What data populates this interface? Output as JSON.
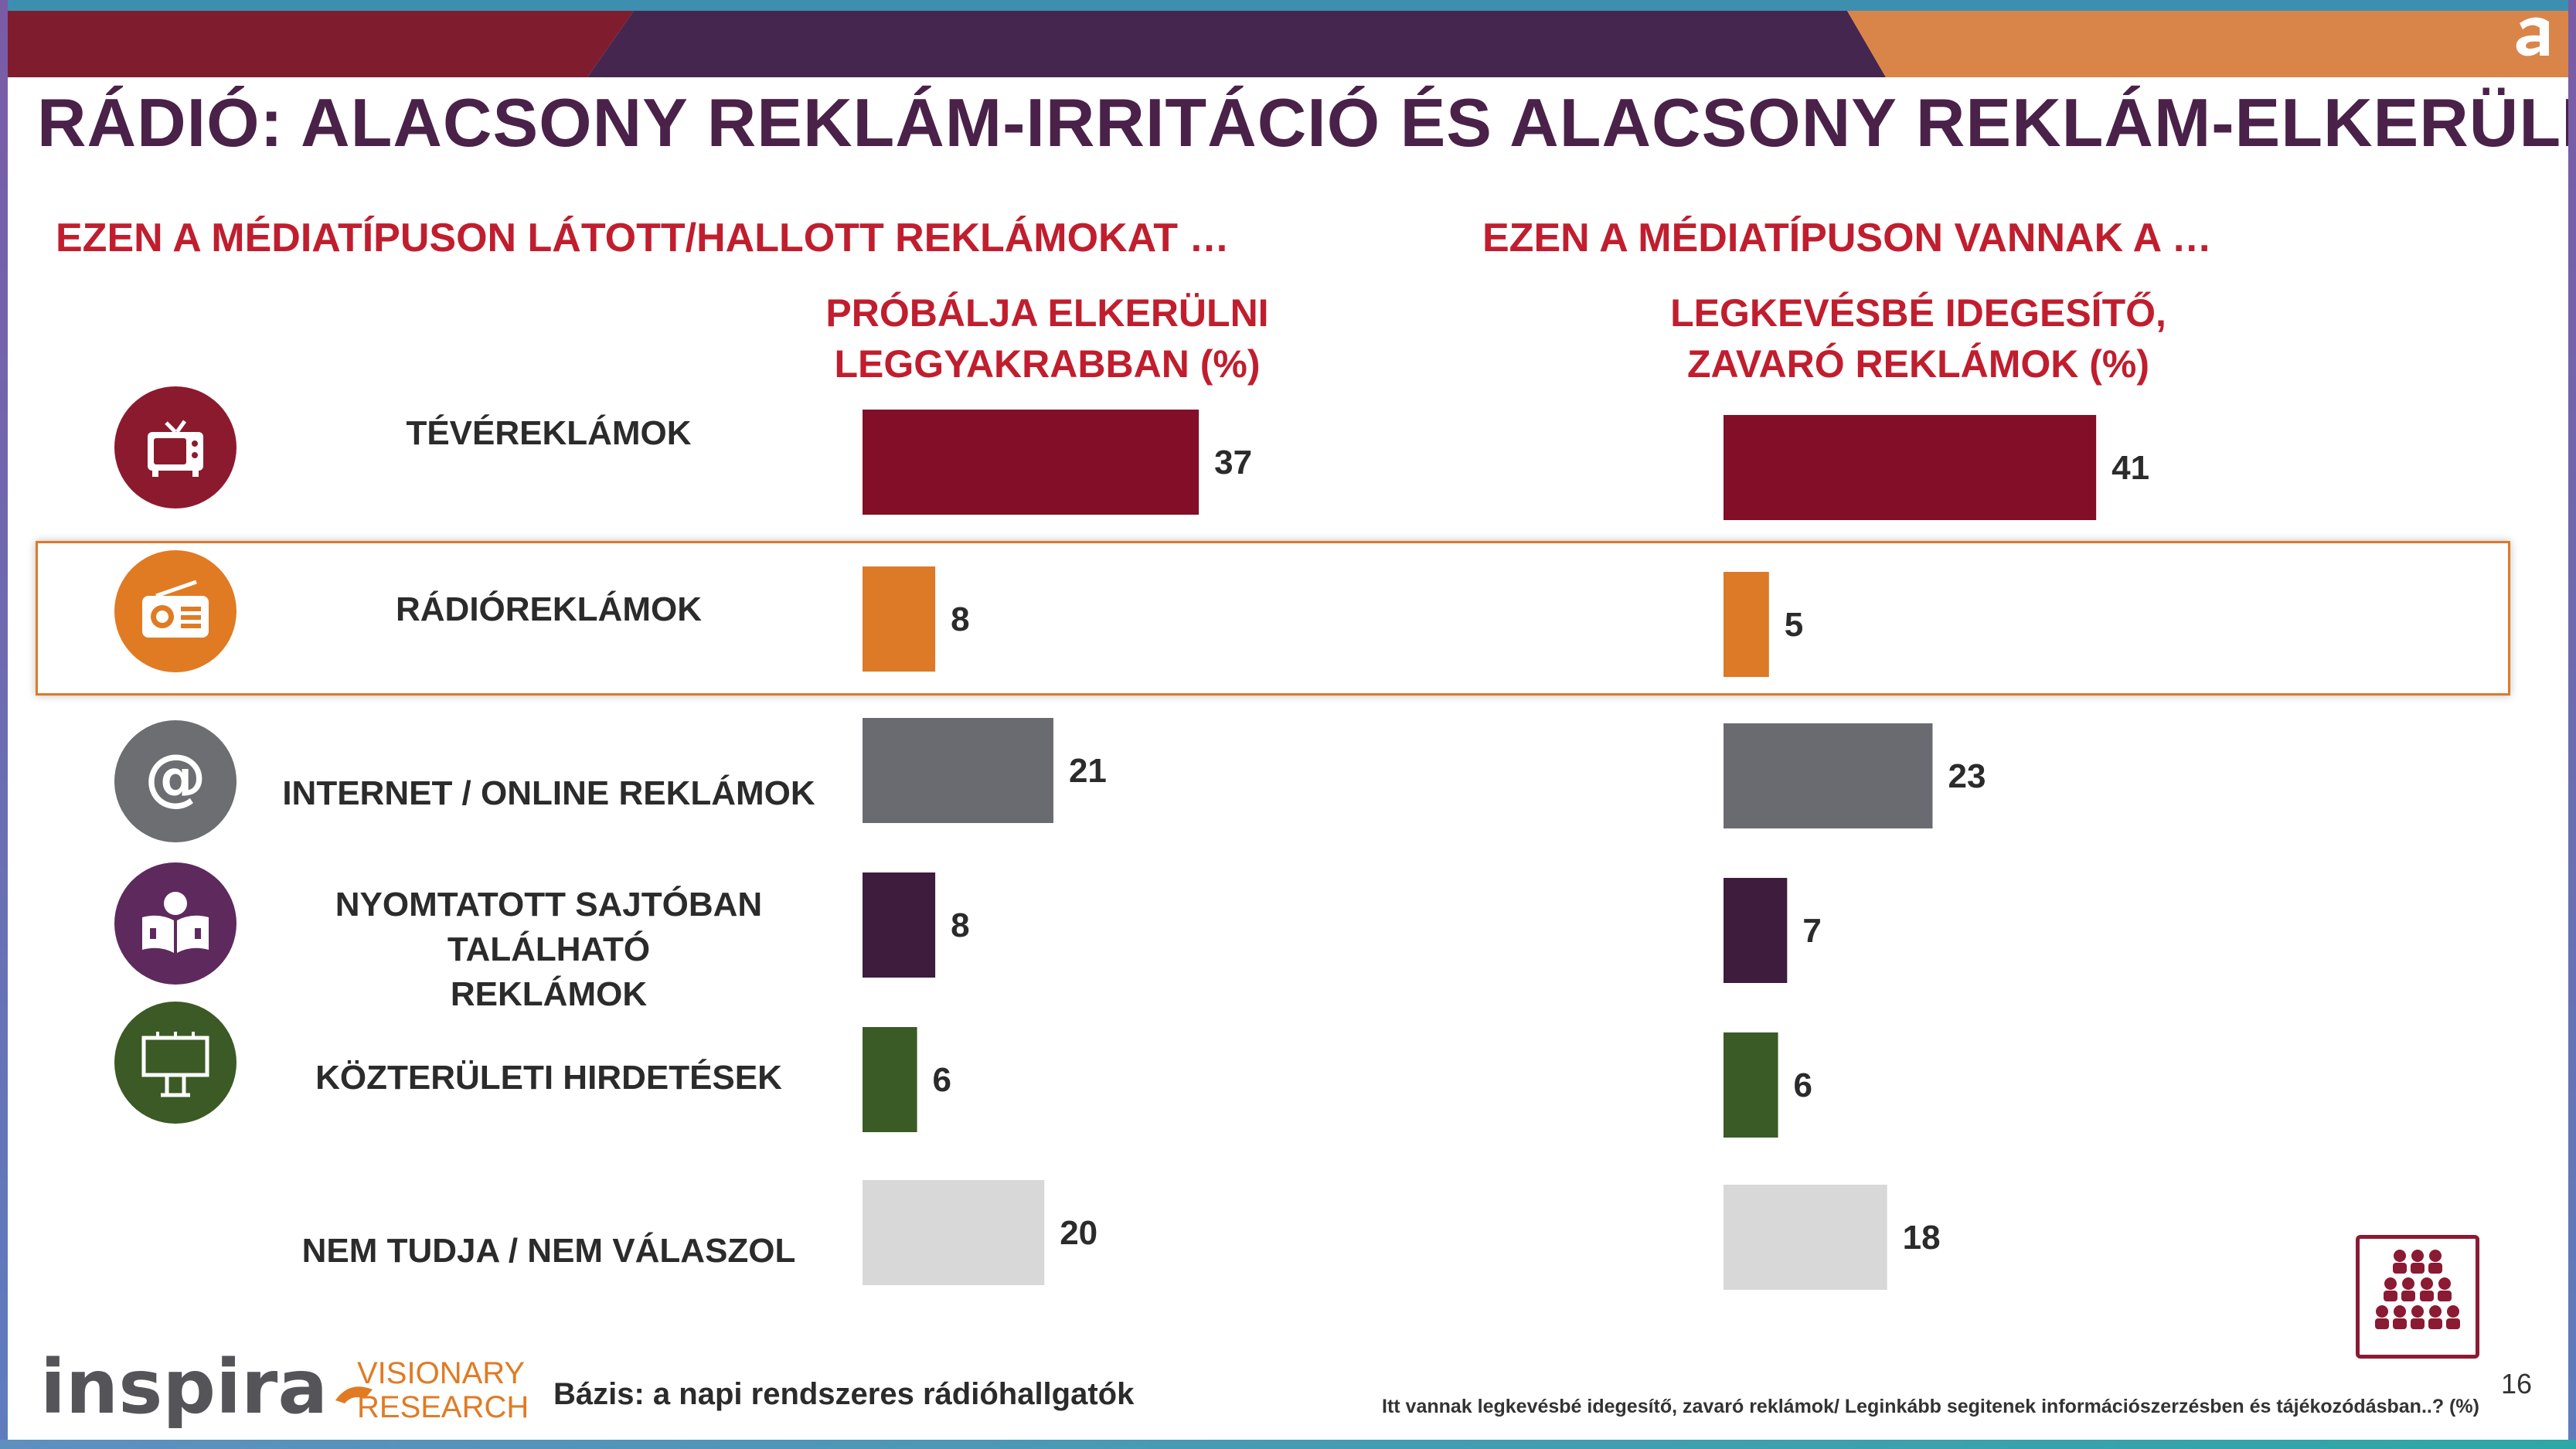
{
  "title": "RÁDIÓ: ALACSONY REKLÁM-IRRITÁCIÓ ÉS ALACSONY REKLÁM-ELKERÜLÉS",
  "left_section_title": "EZEN A MÉDIATÍPUSON LÁTOTT/HALLOTT REKLÁMOKAT …",
  "right_section_title": "EZEN A MÉDIATÍPUSON VANNAK A …",
  "left_column_header": [
    "PRÓBÁLJA ELKERÜLNI",
    "LEGGYAKRABBAN (%)"
  ],
  "right_column_header": [
    "LEGKEVÉSBÉ IDEGESÍTŐ,",
    "ZAVARÓ REKLÁMOK (%)"
  ],
  "rows": [
    {
      "label": [
        "TÉVÉREKLÁMOK"
      ],
      "icon": "tv-icon",
      "icon_color": "#8c1a2f"
    },
    {
      "label": [
        "RÁDIÓREKLÁMOK"
      ],
      "icon": "radio-icon",
      "icon_color": "#e07b24",
      "highlighted": true
    },
    {
      "label": [
        "INTERNET / ONLINE REKLÁMOK"
      ],
      "icon": "at-sign-icon",
      "icon_color": "#6d6e71"
    },
    {
      "label": [
        "NYOMTATOTT SAJTÓBAN TALÁLHATÓ",
        "REKLÁMOK"
      ],
      "icon": "reader-icon",
      "icon_color": "#5e2a5e"
    },
    {
      "label": [
        "KÖZTERÜLETI HIRDETÉSEK"
      ],
      "icon": "billboard-icon",
      "icon_color": "#3b5a26"
    },
    {
      "label": [
        "NEM TUDJA / NEM VÁLASZOL"
      ],
      "icon": null,
      "icon_color": null
    }
  ],
  "chart_data": [
    {
      "type": "bar",
      "orientation": "horizontal",
      "categories": [
        "TÉVÉREKLÁMOK",
        "RÁDIÓREKLÁMOK",
        "INTERNET / ONLINE REKLÁMOK",
        "NYOMTATOTT SAJTÓBAN TALÁLHATÓ REKLÁMOK",
        "KÖZTERÜLETI HIRDETÉSEK",
        "NEM TUDJA / NEM VÁLASZOL"
      ],
      "values": [
        37,
        8,
        21,
        8,
        6,
        20
      ],
      "colors": [
        "#820e28",
        "#dc7a27",
        "#6a6b70",
        "#3e1c3d",
        "#3a5a26",
        "#d8d8d8"
      ],
      "title": "PRÓBÁLJA ELKERÜLNI LEGGYAKRABBAN (%)",
      "data_labels": true
    },
    {
      "type": "bar",
      "orientation": "horizontal",
      "categories": [
        "TÉVÉREKLÁMOK",
        "RÁDIÓREKLÁMOK",
        "INTERNET / ONLINE REKLÁMOK",
        "NYOMTATOTT SAJTÓBAN TALÁLHATÓ REKLÁMOK",
        "KÖZTERÜLETI HIRDETÉSEK",
        "NEM TUDJA / NEM VÁLASZOL"
      ],
      "values": [
        41,
        5,
        23,
        7,
        6,
        18
      ],
      "colors": [
        "#820e28",
        "#dc7a27",
        "#6a6b70",
        "#3e1c3d",
        "#3a5a26",
        "#d8d8d8"
      ],
      "title": "LEGKEVÉSBÉ IDEGESÍTŐ, ZAVARÓ REKLÁMOK (%)",
      "data_labels": true
    }
  ],
  "footer": {
    "logo_word": "inspira",
    "logo_sub": [
      "VISIONARY",
      "RESEARCH"
    ],
    "basis": "Bázis: a napi rendszeres  rádióhallgatók",
    "footnote": "Itt vannak legkevésbé idegesítő, zavaró reklámok/ Leginkább segitenek információszerzésben és tájékozódásban..? (%)",
    "page_number": "16"
  },
  "colors": {
    "title": "#4a2148",
    "section": "#c01e2e",
    "highlight_border": "#dc7a2a"
  }
}
